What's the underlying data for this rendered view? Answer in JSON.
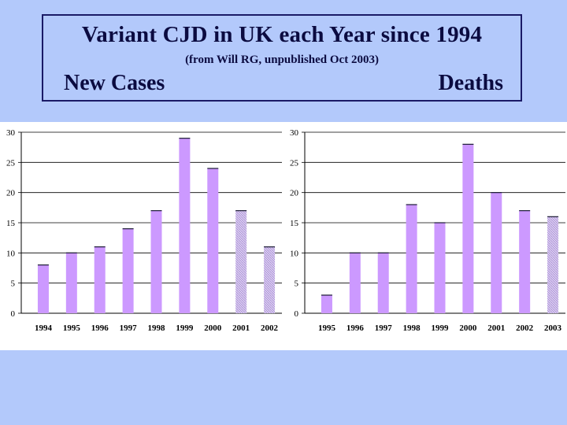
{
  "slide": {
    "title": "Variant CJD in UK each Year since 1994",
    "subtitle": "(from Will RG, unpublished Oct 2003)",
    "left_heading": "New Cases",
    "right_heading": "Deaths"
  },
  "colors": {
    "background": "#b3c9fb",
    "panel": "#ffffff",
    "bar": "#cc99ff",
    "bar_partial": "#ddd0f0",
    "gridline": "#000000",
    "text": "#0b0b40"
  },
  "chart_data": [
    {
      "type": "bar",
      "title": "",
      "xlabel": "",
      "ylabel": "",
      "ylim": [
        0,
        30
      ],
      "yticks": [
        0,
        5,
        10,
        15,
        20,
        25,
        30
      ],
      "grid": true,
      "categories": [
        "1994",
        "1995",
        "1996",
        "1997",
        "1998",
        "1999",
        "2000",
        "2001",
        "2002"
      ],
      "values": [
        8,
        10,
        11,
        14,
        17,
        29,
        24,
        17,
        11
      ],
      "partial_year": [
        false,
        false,
        false,
        false,
        false,
        false,
        false,
        true,
        true
      ]
    },
    {
      "type": "bar",
      "title": "",
      "xlabel": "",
      "ylabel": "",
      "ylim": [
        0,
        30
      ],
      "yticks": [
        0,
        5,
        10,
        15,
        20,
        25,
        30
      ],
      "grid": true,
      "categories": [
        "1995",
        "1996",
        "1997",
        "1998",
        "1999",
        "2000",
        "2001",
        "2002",
        "2003"
      ],
      "values": [
        3,
        10,
        10,
        18,
        15,
        28,
        20,
        17,
        16
      ],
      "partial_year": [
        false,
        false,
        false,
        false,
        false,
        false,
        false,
        false,
        true
      ]
    }
  ]
}
